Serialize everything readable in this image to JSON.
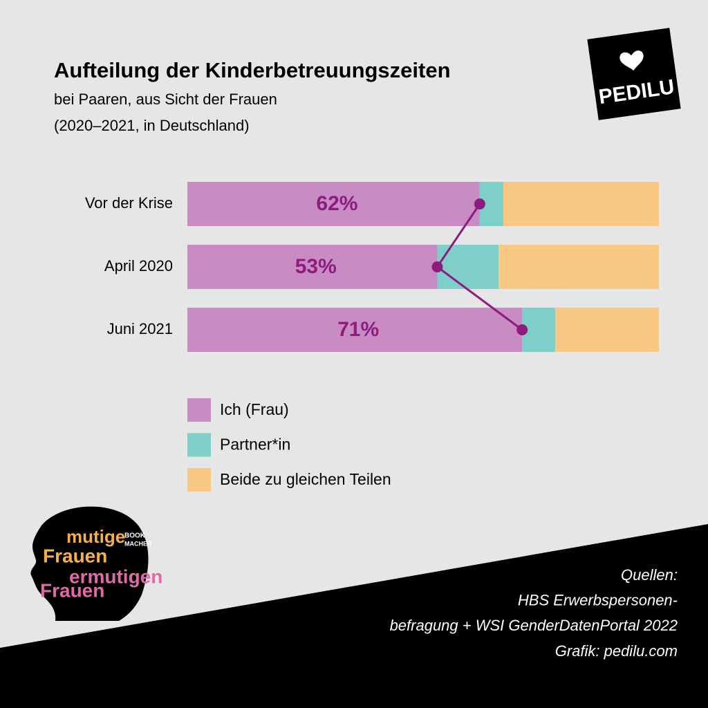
{
  "chart_data": {
    "type": "stacked-bar-horizontal",
    "title": "Aufteilung der Kinderbetreuungszeiten",
    "subtitle": [
      "bei Paaren, aus Sicht der Frauen",
      "(2020–2021, in Deutschland)"
    ],
    "categories": [
      "Vor der Krise",
      "April 2020",
      "Juni 2021"
    ],
    "series": [
      {
        "name": "Ich (Frau)",
        "color": "#c98bc3",
        "values": [
          62,
          53,
          71
        ],
        "value_labels": [
          "62%",
          "53%",
          "71%"
        ]
      },
      {
        "name": "Partner*in",
        "color": "#7ecfc9",
        "values": [
          5,
          13,
          7
        ]
      },
      {
        "name": "Beide zu gleichen Teilen",
        "color": "#f9c983",
        "values": [
          33,
          34,
          22
        ]
      }
    ],
    "line_color": "#8e1b7e",
    "label_color": "#8e1b7e",
    "source": [
      "Quellen:",
      "HBS Erwerbspersonen-",
      "befragung + WSI GenderDatenPortal 2022",
      "Grafik: pedilu.com"
    ]
  },
  "branding": {
    "logo": "PEDILU",
    "badge": [
      "mutige",
      "Frauen",
      "ermutigen",
      "Frauen"
    ],
    "badge_small": [
      "BOOK",
      "MACHER"
    ]
  }
}
